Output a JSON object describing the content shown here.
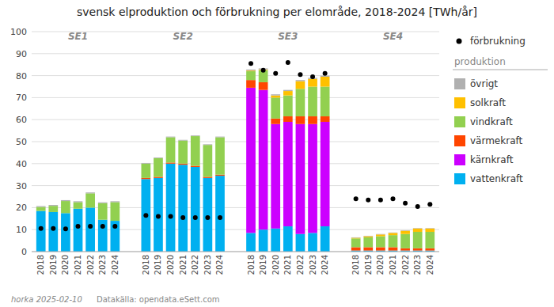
{
  "chart_data": {
    "type": "bar",
    "stacked": true,
    "title": "svensk elproduktion och förbrukning per elområde, 2018-2024 [TWh/år]",
    "groups": [
      "SE1",
      "SE2",
      "SE3",
      "SE4"
    ],
    "categories": [
      "2018",
      "2019",
      "2020",
      "2021",
      "2022",
      "2023",
      "2024"
    ],
    "series": [
      {
        "name": "vattenkraft",
        "color": "#00B0F0",
        "values": [
          [
            18.5,
            18.0,
            17.5,
            19.5,
            20.0,
            14.5,
            14.0
          ],
          [
            33.0,
            33.5,
            40.0,
            39.5,
            38.5,
            33.5,
            34.5
          ],
          [
            8.5,
            10.0,
            10.5,
            11.5,
            8.0,
            8.5,
            11.5
          ],
          [
            0.5,
            0.5,
            0.5,
            0.5,
            0.5,
            0.5,
            0.5
          ]
        ]
      },
      {
        "name": "kärnkraft",
        "color": "#CC00FF",
        "values": [
          [
            0,
            0,
            0,
            0,
            0,
            0,
            0
          ],
          [
            0,
            0,
            0,
            0,
            0,
            0,
            0
          ],
          [
            66.0,
            63.5,
            47.5,
            47.5,
            50.0,
            49.5,
            47.5
          ],
          [
            0,
            0,
            0,
            0,
            0,
            0,
            0
          ]
        ]
      },
      {
        "name": "värmekraft",
        "color": "#FF4500",
        "values": [
          [
            0,
            0,
            0,
            0,
            0,
            0,
            0
          ],
          [
            0.5,
            0.5,
            0.5,
            0.5,
            0.5,
            0.5,
            0.5
          ],
          [
            3.5,
            3.5,
            2.5,
            2.5,
            3.5,
            3.5,
            2.5
          ],
          [
            1.5,
            1.5,
            1.5,
            1.5,
            1.0,
            1.0,
            1.0
          ]
        ]
      },
      {
        "name": "vindkraft",
        "color": "#92D050",
        "values": [
          [
            1.8,
            2.8,
            5.5,
            3.0,
            6.5,
            7.5,
            8.5
          ],
          [
            6.5,
            8.5,
            11.5,
            10.5,
            13.5,
            14.5,
            17.0
          ],
          [
            4.0,
            5.5,
            9.5,
            9.5,
            12.5,
            13.5,
            13.5
          ],
          [
            4.0,
            4.5,
            5.0,
            5.5,
            6.5,
            7.5,
            7.5
          ]
        ]
      },
      {
        "name": "solkraft",
        "color": "#FFC000",
        "values": [
          [
            0,
            0,
            0,
            0,
            0,
            0,
            0
          ],
          [
            0,
            0,
            0,
            0,
            0,
            0,
            0
          ],
          [
            0.3,
            0.3,
            1.0,
            2.0,
            3.5,
            3.5,
            4.5
          ],
          [
            0.3,
            0.5,
            0.8,
            1.0,
            1.5,
            1.5,
            1.5
          ]
        ]
      },
      {
        "name": "övrigt",
        "color": "#B0B0B0",
        "values": [
          [
            0.4,
            0.4,
            0.4,
            0.4,
            0.4,
            0.4,
            0.4
          ],
          [
            0.3,
            0.3,
            0.3,
            0.3,
            0.3,
            0.3,
            0.3
          ],
          [
            0.5,
            0.5,
            0.5,
            0.5,
            0.5,
            0.5,
            0.5
          ],
          [
            0.2,
            0.2,
            0.2,
            0.2,
            0.2,
            0.2,
            0.2
          ]
        ]
      },
      {
        "name": "förbrukning",
        "type": "scatter",
        "marker": "circle",
        "color": "#000000",
        "values": [
          [
            10.5,
            10.5,
            10.3,
            11.5,
            11.5,
            11.5,
            11.5
          ],
          [
            16.5,
            16.0,
            16.0,
            15.5,
            15.5,
            15.5,
            15.5
          ],
          [
            85.5,
            82.5,
            81.0,
            86.0,
            80.5,
            79.5,
            81.0
          ],
          [
            24.0,
            23.5,
            23.5,
            24.0,
            22.0,
            20.5,
            21.5
          ]
        ]
      }
    ],
    "legend_heading": "produktion",
    "footer": [
      "horka 2025-02-10",
      "Datakälla: opendata.eSett.com"
    ],
    "ylim": [
      0,
      100
    ],
    "yticks": [
      0,
      10,
      20,
      30,
      40,
      50,
      60,
      70,
      80,
      90,
      100
    ],
    "grid": true,
    "legend": "right"
  }
}
